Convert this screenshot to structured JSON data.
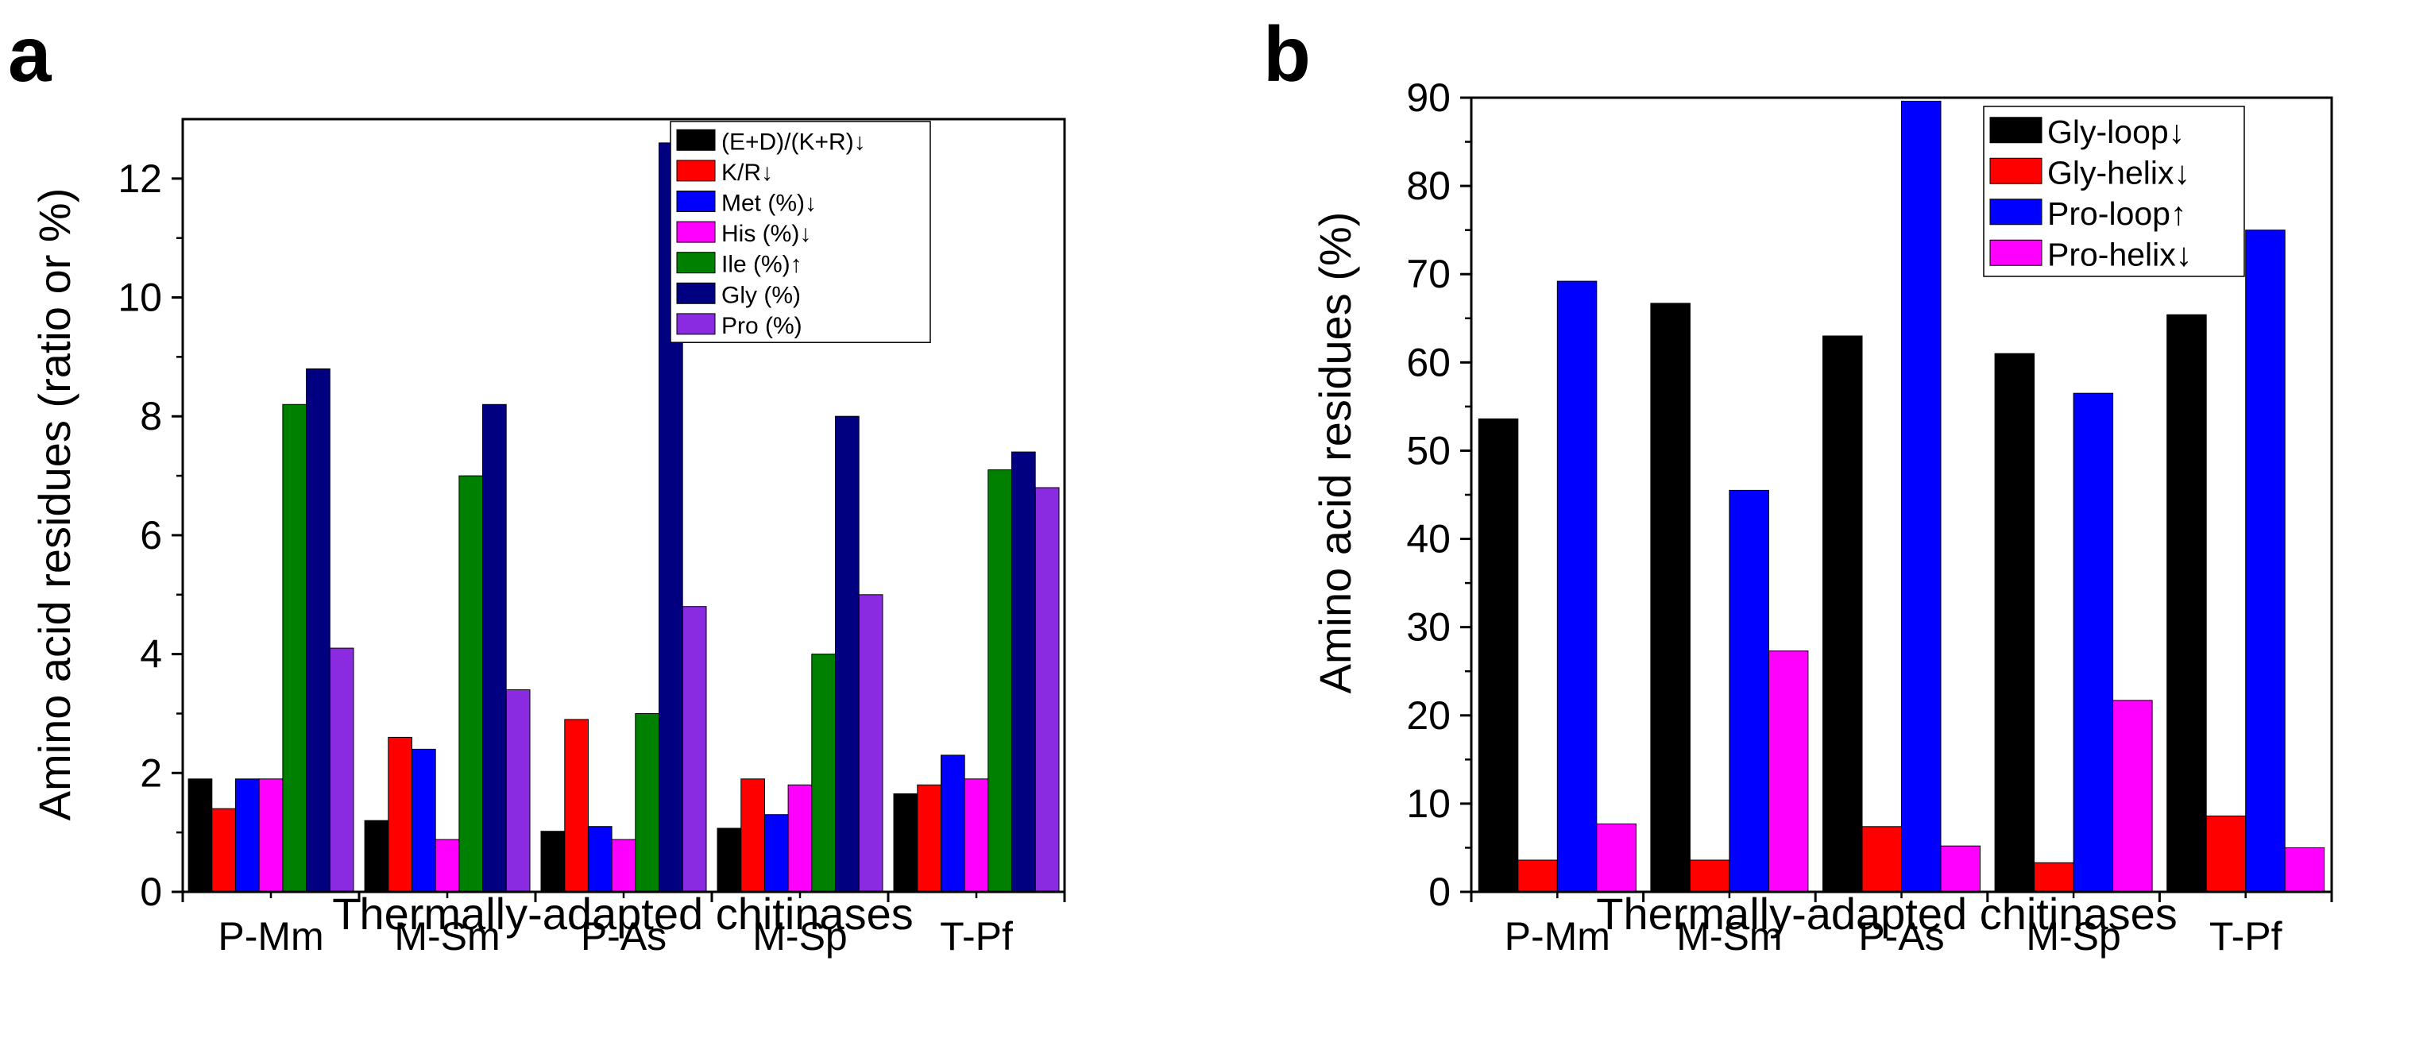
{
  "chart_data": [
    {
      "type": "bar",
      "panel_label": "a",
      "categories": [
        "P-Mm",
        "M-Sm",
        "P-As",
        "M-Sp",
        "T-Pf"
      ],
      "series": [
        {
          "name": "(E+D)/(K+R)↓",
          "color": "#000000",
          "values": [
            1.9,
            1.2,
            1.02,
            1.07,
            1.65
          ]
        },
        {
          "name": "K/R↓",
          "color": "#ff0000",
          "values": [
            1.4,
            2.6,
            2.9,
            1.9,
            1.8
          ]
        },
        {
          "name": "Met (%)↓",
          "color": "#0000ff",
          "values": [
            1.9,
            2.4,
            1.1,
            1.3,
            2.3
          ]
        },
        {
          "name": "His (%)↓",
          "color": "#ff00ff",
          "values": [
            1.9,
            0.88,
            0.88,
            1.8,
            1.9
          ]
        },
        {
          "name": "Ile (%)↑",
          "color": "#008000",
          "values": [
            8.2,
            7.0,
            3.0,
            4.0,
            7.1
          ]
        },
        {
          "name": "Gly (%)",
          "color": "#000080",
          "values": [
            8.8,
            8.2,
            12.6,
            8.0,
            7.4
          ]
        },
        {
          "name": "Pro (%)",
          "color": "#8a2be2",
          "values": [
            4.1,
            3.4,
            4.8,
            5.0,
            6.8
          ]
        }
      ],
      "xlabel": "Thermally-adapted chitinases",
      "ylabel": "Amino acid residues (ratio or %)",
      "ylim": [
        0,
        13
      ],
      "yticks": [
        0,
        2,
        4,
        6,
        8,
        10,
        12
      ],
      "legend_position": "top-right",
      "grid": false
    },
    {
      "type": "bar",
      "panel_label": "b",
      "categories": [
        "P-Mm",
        "M-Sm",
        "P-As",
        "M-Sp",
        "T-Pf"
      ],
      "series": [
        {
          "name": "Gly-loop↓",
          "color": "#000000",
          "values": [
            53.6,
            66.7,
            63.0,
            61.0,
            65.4
          ]
        },
        {
          "name": "Gly-helix↓",
          "color": "#ff0000",
          "values": [
            3.6,
            3.6,
            7.4,
            3.3,
            8.6
          ]
        },
        {
          "name": "Pro-loop↑",
          "color": "#0000ff",
          "values": [
            69.2,
            45.5,
            89.6,
            56.5,
            75.0
          ]
        },
        {
          "name": "Pro-helix↓",
          "color": "#ff00ff",
          "values": [
            7.7,
            27.3,
            5.2,
            21.7,
            5.0
          ]
        }
      ],
      "xlabel": "Thermally-adapted chitinases",
      "ylabel": "Amino acid residues (%)",
      "ylim": [
        0,
        90
      ],
      "yticks": [
        0,
        10,
        20,
        30,
        40,
        50,
        60,
        70,
        80,
        90
      ],
      "legend_position": "top-right",
      "grid": false
    }
  ]
}
